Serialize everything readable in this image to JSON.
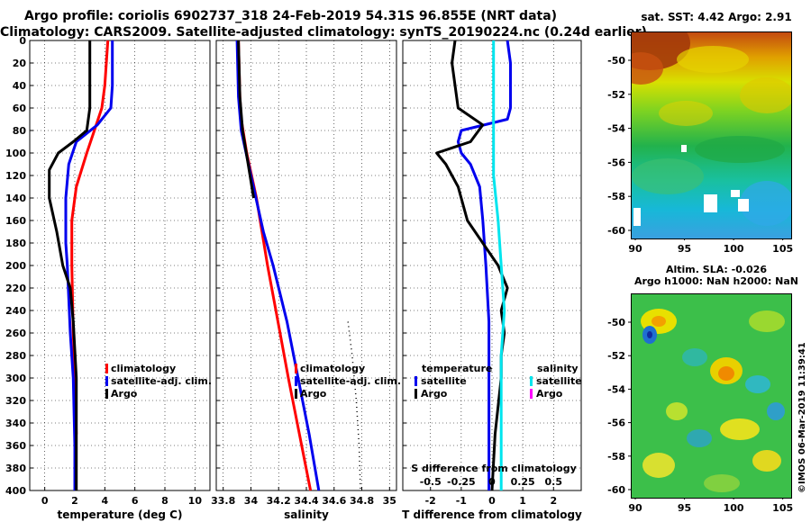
{
  "title": {
    "line1": "Argo profile: coriolis 6902737_318 24-Feb-2019 54.31S 96.855E (NRT data)",
    "line2": "Climatology: CARS2009. Satellite-adjusted climatology: synTS_20190224.nc (0.24d earlier)"
  },
  "colors": {
    "climatology": "#ff0000",
    "satellite": "#0000ee",
    "argo": "#000000",
    "salinity_satellite": "#00e5ee",
    "salinity_argo": "#ff00ff"
  },
  "chart_data": [
    {
      "type": "line",
      "name": "temperature-panel",
      "xlabel": "temperature (deg C)",
      "ylabel": "",
      "xlim": [
        -1,
        11
      ],
      "ylim": [
        400,
        0
      ],
      "xticks": [
        "0",
        "2",
        "4",
        "6",
        "8",
        "10"
      ],
      "xtick_values": [
        0,
        2,
        4,
        6,
        8,
        10
      ],
      "yticks": [
        "0",
        "20",
        "40",
        "60",
        "80",
        "100",
        "120",
        "140",
        "160",
        "180",
        "200",
        "220",
        "240",
        "260",
        "280",
        "300",
        "320",
        "340",
        "360",
        "380",
        "400"
      ],
      "grid": true,
      "legend": [
        "climatology",
        "satellite-adj. clim.",
        "Argo"
      ],
      "series": [
        {
          "name": "climatology",
          "color": "red",
          "depth": [
            0,
            40,
            60,
            80,
            100,
            130,
            160,
            200,
            260,
            300,
            350
          ],
          "values": [
            4.2,
            4.0,
            3.8,
            3.3,
            2.8,
            2.1,
            1.8,
            1.8,
            1.9,
            2.0,
            2.1
          ]
        },
        {
          "name": "satellite-adj. clim.",
          "color": "blue",
          "depth": [
            0,
            40,
            60,
            75,
            90,
            110,
            140,
            180,
            200,
            260,
            300,
            360,
            400
          ],
          "values": [
            4.5,
            4.5,
            4.4,
            3.5,
            2.1,
            1.6,
            1.4,
            1.4,
            1.5,
            1.7,
            1.9,
            2.0,
            2.0
          ]
        },
        {
          "name": "Argo",
          "color": "black",
          "depth": [
            0,
            20,
            60,
            80,
            90,
            100,
            115,
            140,
            170,
            200,
            220,
            250,
            300,
            350,
            400
          ],
          "values": [
            3.0,
            3.0,
            3.0,
            2.8,
            1.9,
            0.9,
            0.3,
            0.3,
            0.8,
            1.2,
            1.7,
            1.9,
            2.1,
            2.1,
            2.1
          ]
        }
      ]
    },
    {
      "type": "line",
      "name": "salinity-panel",
      "xlabel": "salinity",
      "xlim": [
        33.75,
        35.05
      ],
      "ylim": [
        400,
        0
      ],
      "xticks": [
        "33.8",
        "34",
        "34.2",
        "34.4",
        "34.6",
        "34.8",
        "35"
      ],
      "xtick_values": [
        33.8,
        34.0,
        34.2,
        34.4,
        34.6,
        34.8,
        35.0
      ],
      "grid": true,
      "legend": [
        "climatology",
        "satellite-adj. clim.",
        "Argo"
      ],
      "series": [
        {
          "name": "climatology",
          "color": "red",
          "depth": [
            0,
            50,
            70,
            100,
            140,
            200,
            260,
            300,
            350,
            400
          ],
          "values": [
            33.91,
            33.92,
            33.93,
            33.97,
            34.04,
            34.12,
            34.21,
            34.27,
            34.35,
            34.43
          ]
        },
        {
          "name": "satellite-adj. clim.",
          "color": "blue",
          "depth": [
            0,
            50,
            80,
            120,
            170,
            200,
            250,
            300,
            350,
            400
          ],
          "values": [
            33.9,
            33.91,
            33.93,
            34.0,
            34.09,
            34.16,
            34.26,
            34.34,
            34.42,
            34.49
          ]
        },
        {
          "name": "Argo",
          "color": "black",
          "depth": [
            0,
            50,
            80,
            110,
            140
          ],
          "values": [
            33.91,
            33.92,
            33.94,
            33.98,
            34.02
          ]
        },
        {
          "name": "reference",
          "color": "black-dotted",
          "depth": [
            250,
            280,
            320,
            360,
            400
          ],
          "values": [
            34.7,
            34.73,
            34.76,
            34.78,
            34.79
          ]
        }
      ]
    },
    {
      "type": "line",
      "name": "difference-panel",
      "xlabel": "T difference from climatology",
      "xlabel_top": "S difference from climatology",
      "xlim": [
        -2.9,
        2.9
      ],
      "ylim": [
        400,
        0
      ],
      "xticks": [
        "-2",
        "-1",
        "0",
        "1",
        "2"
      ],
      "xtick_values": [
        -2,
        -1,
        0,
        1,
        2
      ],
      "sticks": [
        "-0.5",
        "-0.25",
        "0",
        "0.25",
        "0.5"
      ],
      "stick_values": [
        -2,
        -1,
        0,
        1,
        2
      ],
      "grid": true,
      "legend_temperature_title": "temperature",
      "legend_salinity_title": "salinity",
      "legend_temperature": [
        "satellite",
        "Argo"
      ],
      "legend_salinity": [
        "satellite",
        "Argo"
      ],
      "series": [
        {
          "name": "T satellite",
          "color": "blue",
          "depth": [
            0,
            20,
            40,
            60,
            70,
            80,
            90,
            100,
            110,
            130,
            160,
            200,
            250,
            300,
            350,
            400
          ],
          "values": [
            0.5,
            0.6,
            0.6,
            0.6,
            0.5,
            -1.0,
            -1.1,
            -1.0,
            -0.7,
            -0.4,
            -0.3,
            -0.2,
            -0.1,
            -0.1,
            -0.1,
            -0.1
          ]
        },
        {
          "name": "T Argo",
          "color": "black",
          "depth": [
            0,
            20,
            60,
            75,
            90,
            100,
            110,
            130,
            160,
            200,
            220,
            240,
            260,
            280,
            300,
            350,
            400
          ],
          "values": [
            -1.2,
            -1.3,
            -1.1,
            -0.3,
            -0.7,
            -1.8,
            -1.5,
            -1.1,
            -0.8,
            0.2,
            0.5,
            0.3,
            0.4,
            0.3,
            0.3,
            0.1,
            0.0
          ]
        },
        {
          "name": "S satellite",
          "color": "cyan",
          "depth": [
            0,
            80,
            120,
            160,
            200,
            240,
            280,
            320,
            360,
            400
          ],
          "values": [
            0.05,
            0.05,
            0.05,
            0.2,
            0.3,
            0.4,
            0.3,
            0.3,
            0.3,
            0.3
          ]
        }
      ]
    }
  ],
  "maps": {
    "sst": {
      "title": "sat. SST: 4.42 Argo: 2.91",
      "yticks": [
        "-50",
        "-52",
        "-54",
        "-56",
        "-58",
        "-60"
      ],
      "xticks": [
        "90",
        "95",
        "100",
        "105"
      ]
    },
    "sla": {
      "title_line1": "Altim. SLA: -0.026",
      "title_line2": "Argo h1000: NaN h2000: NaN",
      "yticks": [
        "-50",
        "-52",
        "-54",
        "-56",
        "-58",
        "-60"
      ],
      "xticks": [
        "90",
        "95",
        "100",
        "105"
      ]
    }
  },
  "credit": "©IMOS 06-Mar-2019 11:39:41"
}
